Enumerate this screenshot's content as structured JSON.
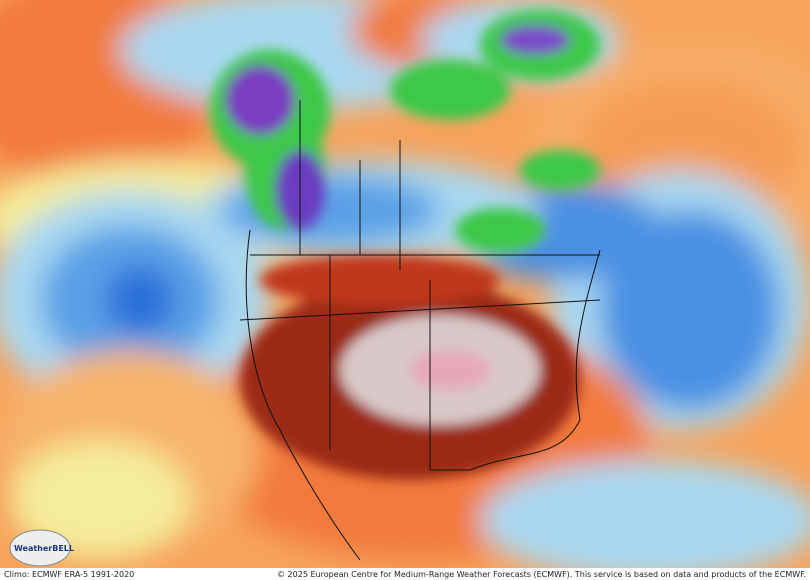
{
  "footer": {
    "left": "Climo: ECMWF ERA-5 1991-2020",
    "right": "© 2025 European Centre for Medium-Range Weather Forecasts (ECMWF). This service is based on data and products of the ECMWF."
  },
  "logo": {
    "text": "WeatherBELL"
  }
}
